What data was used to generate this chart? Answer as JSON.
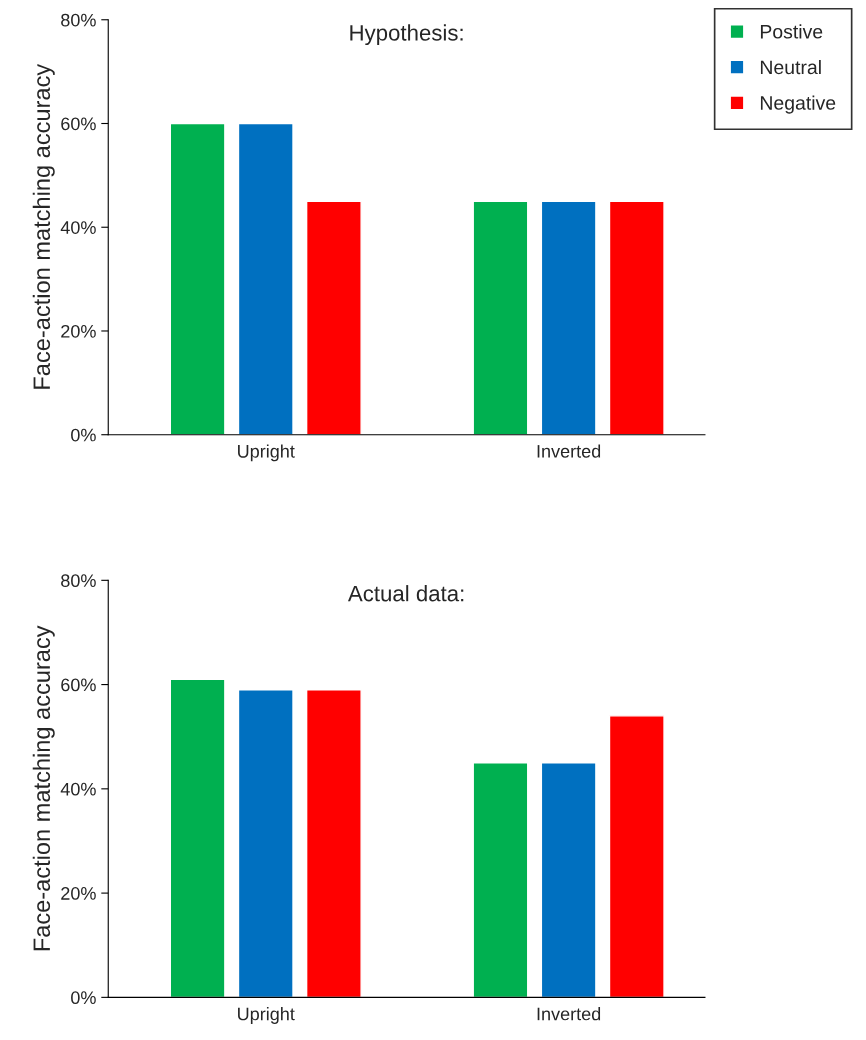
{
  "chart_data": [
    {
      "type": "bar",
      "title": "Hypothesis:",
      "ylabel": "Face-action matching accuracy",
      "categories": [
        "Upright",
        "Inverted"
      ],
      "series": [
        {
          "name": "Postive",
          "color": "#00b050",
          "values": [
            60,
            45
          ]
        },
        {
          "name": "Neutral",
          "color": "#0070c0",
          "values": [
            60,
            45
          ]
        },
        {
          "name": "Negative",
          "color": "#ff0000",
          "values": [
            45,
            45
          ]
        }
      ],
      "ylim": [
        0,
        80
      ],
      "yticks": [
        {
          "value": 0,
          "label": "0%"
        },
        {
          "value": 20,
          "label": "20%"
        },
        {
          "value": 40,
          "label": "40%"
        },
        {
          "value": 60,
          "label": "60%"
        },
        {
          "value": 80,
          "label": "80%"
        }
      ],
      "grid": false,
      "legend": "top right"
    },
    {
      "type": "bar",
      "title": "Actual data:",
      "ylabel": "Face-action matching accuracy",
      "categories": [
        "Upright",
        "Inverted"
      ],
      "series": [
        {
          "color": "#00b050",
          "values": [
            61,
            45
          ]
        },
        {
          "color": "#0070c0",
          "values": [
            59,
            45
          ]
        },
        {
          "color": "#ff0000",
          "values": [
            59,
            54
          ]
        }
      ],
      "ylim": [
        0,
        80
      ],
      "yticks": [
        {
          "value": 0,
          "label": "0%"
        },
        {
          "value": 20,
          "label": "20%"
        },
        {
          "value": 40,
          "label": "40%"
        },
        {
          "value": 60,
          "label": "60%"
        },
        {
          "value": 80,
          "label": "80%"
        }
      ],
      "grid": false
    }
  ]
}
